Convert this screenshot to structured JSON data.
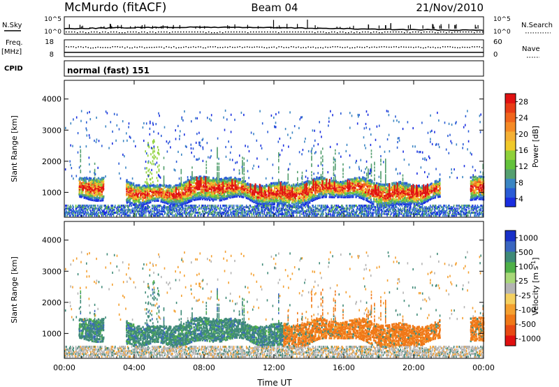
{
  "header": {
    "station": "McMurdo (fitACF)",
    "beam": "Beam 04",
    "date": "21/Nov/2010"
  },
  "top_panels": {
    "nsky_label": "N.Sky",
    "nsky_top_tick": "10^5",
    "nsky_bottom_tick": "10^0",
    "nsearch_label": "N.Search",
    "nsearch_top_tick": "10^5",
    "nsearch_bottom_tick": "10^0",
    "freq_label": "Freq.",
    "freq_unit": "[MHz]",
    "freq_ticks": [
      "18",
      "8"
    ],
    "nave_label": "Nave",
    "nave_ticks": [
      "60",
      "0"
    ],
    "cpid_label": "CPID",
    "cpid_value": "normal (fast) 151"
  },
  "chart_data": [
    {
      "type": "heatmap",
      "ylabel": "Slant Range [km]",
      "xlabel": "",
      "x_ticks": [
        "00:00",
        "04:00",
        "08:00",
        "12:00",
        "16:00",
        "20:00",
        "00:00"
      ],
      "x_range_hours": [
        0,
        24
      ],
      "y_ticks": [
        1000,
        2000,
        3000,
        4000
      ],
      "ylim": [
        200,
        4600
      ],
      "colorbar": {
        "label": "Power [dB]",
        "ticks": [
          "4",
          "8",
          "12",
          "16",
          "20",
          "24",
          "28"
        ],
        "colors": [
          "#1a2ee0",
          "#2a5cd6",
          "#3b86c3",
          "#55a070",
          "#63c23c",
          "#8fd13a",
          "#f0c92a",
          "#f4b034",
          "#f58a25",
          "#f0651c",
          "#e83c16",
          "#e11212"
        ]
      },
      "structure": {
        "main_band": {
          "range_km_center": 1000,
          "hours": [
            3.5,
            21.5
          ],
          "peak_db": 28
        },
        "near_range_clutter": {
          "range_km": [
            200,
            600
          ],
          "hours": [
            0,
            24
          ]
        },
        "sparse_echoes": {
          "range_km": [
            1500,
            3500
          ],
          "hours": [
            0,
            24
          ]
        }
      }
    },
    {
      "type": "heatmap",
      "ylabel": "Slant Range [km]",
      "xlabel": "Time UT",
      "x_ticks": [
        "00:00",
        "04:00",
        "08:00",
        "12:00",
        "16:00",
        "20:00",
        "00:00"
      ],
      "x_range_hours": [
        0,
        24
      ],
      "y_ticks": [
        1000,
        2000,
        3000,
        4000
      ],
      "ylim": [
        200,
        4600
      ],
      "colorbar": {
        "label": "Velocity [m s^-1]",
        "ticks": [
          "1000",
          "500",
          "100",
          "25",
          "-25",
          "-100",
          "-500",
          "-1000"
        ],
        "colors": [
          "#1830c8",
          "#3a66c0",
          "#3f8a78",
          "#4fb048",
          "#a8d878",
          "#b4b4b4",
          "#f4d060",
          "#f4a030",
          "#f07818",
          "#e84a14",
          "#e01010"
        ]
      },
      "structure": {
        "positive_band": {
          "hours": [
            3.5,
            12.5
          ],
          "velocity_ms": 100
        },
        "negative_band": {
          "hours": [
            12.5,
            21
          ],
          "velocity_ms": -500
        }
      }
    }
  ]
}
